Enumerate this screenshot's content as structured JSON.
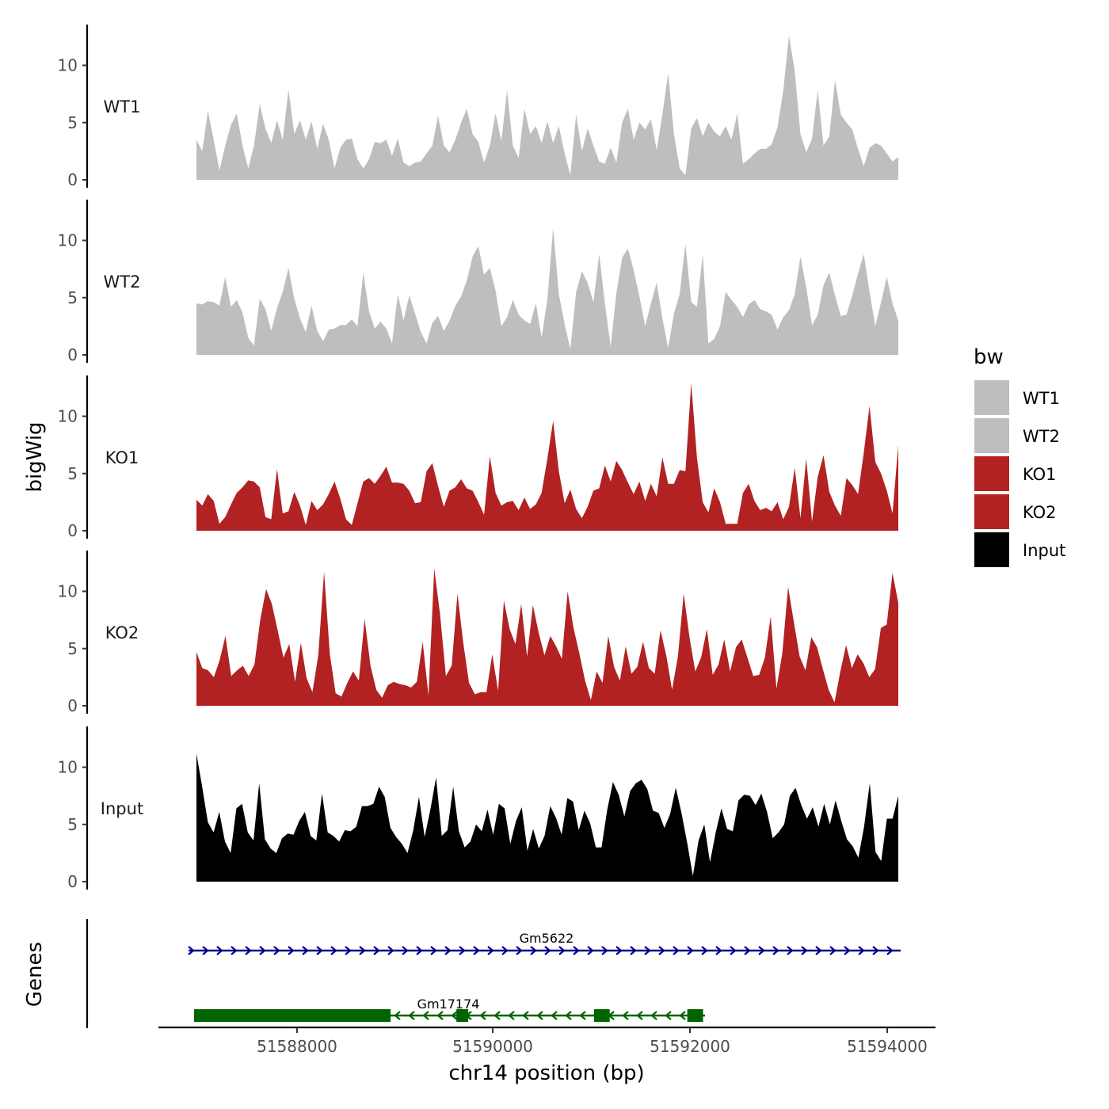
{
  "chart_data": {
    "type": "area",
    "ylabel": "bigWig",
    "xlabel": "chr14 position (bp)",
    "x_range": [
      51586950,
      51594100
    ],
    "x_ticks": [
      51588000,
      51590000,
      51592000,
      51594000
    ],
    "x_tick_labels": [
      "51588000",
      "51590000",
      "51592000",
      "51594000"
    ],
    "y_range": [
      0,
      13.5
    ],
    "y_ticks": [
      0,
      5,
      10
    ],
    "y_tick_labels": [
      "0",
      "5",
      "10"
    ],
    "legend": {
      "title": "bw",
      "position": "right",
      "entries": [
        {
          "label": "WT1",
          "color": "#bebebe"
        },
        {
          "label": "WT2",
          "color": "#bebebe"
        },
        {
          "label": "KO1",
          "color": "#b22222"
        },
        {
          "label": "KO2",
          "color": "#b22222"
        },
        {
          "label": "Input",
          "color": "#000000"
        }
      ]
    },
    "series": [
      {
        "name": "WT1",
        "color": "#bebebe",
        "values": [
          3.5,
          2.5,
          6,
          3.5,
          0.8,
          3,
          4.8,
          5.8,
          3,
          1,
          3,
          6.6,
          4.5,
          3.2,
          5.2,
          3.5,
          7.9,
          4,
          5.2,
          3.5,
          5.1,
          2.7,
          4.9,
          3.5,
          1,
          2.8,
          3.5,
          3.6,
          1.8,
          1,
          1.8,
          3.3,
          3.2,
          3.5,
          2.1,
          3.6,
          1.5,
          1.2,
          1.5,
          1.6,
          2.3,
          3,
          5.6,
          3,
          2.4,
          3.5,
          5,
          6.2,
          4,
          3.3,
          1.5,
          3,
          5.8,
          3.4,
          7.8,
          3,
          1.9,
          6.2,
          4,
          4.7,
          3.2,
          5.1,
          3.2,
          4.7,
          2.3,
          0.4,
          5.7,
          2.5,
          4.5,
          3,
          1.6,
          1.4,
          2.8,
          1.5,
          5,
          6.2,
          3.5,
          5,
          4.4,
          5.3,
          2.6,
          5.7,
          9.3,
          4,
          1,
          0.4,
          4.5,
          5.4,
          3.8,
          5,
          4.2,
          3.8,
          4.7,
          3.5,
          5.8,
          1.4,
          1.8,
          2.3,
          2.7,
          2.7,
          3.1,
          4.6,
          7.8,
          12.6,
          9.5,
          4,
          2.4,
          3.6,
          7.8,
          3,
          3.8,
          8.7,
          5.7,
          5,
          4.4,
          2.7,
          1.2,
          2.8,
          3.2,
          3,
          2.3,
          1.6,
          2
        ]
      },
      {
        "name": "WT2",
        "color": "#bebebe",
        "values": [
          4.5,
          4.4,
          4.7,
          4.6,
          4.3,
          6.8,
          4.2,
          4.8,
          3.7,
          1.5,
          0.8,
          4.9,
          4,
          2.1,
          4.1,
          5.5,
          7.6,
          4.9,
          3.2,
          2,
          4.3,
          2.1,
          1.2,
          2.2,
          2.3,
          2.6,
          2.6,
          3.1,
          2.5,
          7.2,
          3.8,
          2.3,
          2.9,
          2.3,
          1,
          5.3,
          3,
          5.2,
          3.6,
          2,
          1,
          2.8,
          3.4,
          2.1,
          3,
          4.3,
          5.1,
          6.5,
          8.6,
          9.5,
          7,
          7.6,
          5.6,
          2.5,
          3.3,
          4.8,
          3.5,
          3,
          2.7,
          4.5,
          1.5,
          4.8,
          11.1,
          5.3,
          2.7,
          0.5,
          5.5,
          7.3,
          6.3,
          4.6,
          8.8,
          4.5,
          0.7,
          5.4,
          8.5,
          9.3,
          7.4,
          5.1,
          2.5,
          4.5,
          6.3,
          3.2,
          0.6,
          3.6,
          5.3,
          9.7,
          4.6,
          4.2,
          8.8,
          1,
          1.4,
          2.5,
          5.5,
          4.8,
          4.2,
          3.3,
          4.4,
          4.8,
          4,
          3.8,
          3.5,
          2.2,
          3.3,
          3.9,
          5.3,
          8.6,
          5.9,
          2.6,
          3.5,
          6.1,
          7.2,
          5.2,
          3.4,
          3.5,
          5.2,
          7.1,
          8.8,
          5.5,
          2.5,
          4.6,
          6.8,
          4.5,
          3
        ]
      },
      {
        "name": "KO1",
        "color": "#b22222",
        "values": [
          2.7,
          2.2,
          3.2,
          2.6,
          0.6,
          1.2,
          2.3,
          3.3,
          3.8,
          4.4,
          4.3,
          3.8,
          1.2,
          1,
          5.4,
          1.5,
          1.7,
          3.4,
          2.2,
          0.5,
          2.6,
          1.8,
          2.3,
          3.2,
          4.3,
          2.8,
          1,
          0.5,
          2.4,
          4.3,
          4.6,
          4.1,
          4.8,
          5.6,
          4.2,
          4.2,
          4.1,
          3.5,
          2.4,
          2.5,
          5.2,
          5.9,
          3.9,
          2.1,
          3.5,
          3.8,
          4.5,
          3.7,
          3.5,
          2.5,
          1.4,
          6.5,
          3.3,
          2.2,
          2.5,
          2.6,
          1.8,
          2.9,
          1.9,
          2.3,
          3.3,
          6.3,
          9.6,
          5.2,
          2.4,
          3.6,
          1.9,
          1.1,
          2.1,
          3.5,
          3.7,
          5.7,
          4.3,
          6.1,
          5.3,
          4.2,
          3.2,
          4.3,
          2.6,
          4.1,
          3,
          6.4,
          4.1,
          4.1,
          5.3,
          5.2,
          12.9,
          6.4,
          2.5,
          1.6,
          3.7,
          2.5,
          0.6,
          0.6,
          0.6,
          3.3,
          4.1,
          2.6,
          1.8,
          2,
          1.7,
          2.5,
          1,
          2.1,
          5.5,
          1.1,
          6.3,
          0.8,
          4.7,
          6.6,
          3.4,
          2.2,
          1.3,
          4.6,
          4,
          3.2,
          6.8,
          10.9,
          6,
          5,
          3.5,
          1.5,
          7.5
        ]
      },
      {
        "name": "KO2",
        "color": "#b22222",
        "values": [
          4.7,
          3.3,
          3.1,
          2.5,
          4,
          6.1,
          2.6,
          3.1,
          3.5,
          2.6,
          3.6,
          7.5,
          10.2,
          8.9,
          6.6,
          4.2,
          5.4,
          2.1,
          5.5,
          2.4,
          1.2,
          4.4,
          11.7,
          4.5,
          1.1,
          0.8,
          2,
          3,
          2.2,
          7.6,
          3.5,
          1.4,
          0.7,
          1.8,
          2.1,
          1.9,
          1.8,
          1.6,
          2.1,
          5.6,
          0.9,
          12,
          8,
          2.6,
          3.5,
          9.8,
          5.5,
          2,
          1,
          1.2,
          1.2,
          4.5,
          1.3,
          9.2,
          6.7,
          5.4,
          8.9,
          4.3,
          8.8,
          6.4,
          4.4,
          6.1,
          5.2,
          4.1,
          10,
          6.8,
          4.6,
          2.2,
          0.5,
          3,
          2,
          6.1,
          3.4,
          2.2,
          5.2,
          2.8,
          3.4,
          5.6,
          3.3,
          2.8,
          6.6,
          4.4,
          1.4,
          4.3,
          9.8,
          6,
          3,
          4.2,
          6.7,
          2.7,
          3.6,
          5.8,
          3,
          5.1,
          5.8,
          4.2,
          2.6,
          2.7,
          4.2,
          7.8,
          1.5,
          4.6,
          10.4,
          7.3,
          4.3,
          3.1,
          6,
          5.1,
          3.2,
          1.4,
          0.3,
          3,
          5.3,
          3.3,
          4.5,
          3.7,
          2.5,
          3.2,
          6.8,
          7.1,
          11.6,
          9
        ]
      },
      {
        "name": "Input",
        "color": "#000000",
        "values": [
          11.2,
          8.3,
          5.2,
          4.3,
          6.1,
          3.5,
          2.5,
          6.4,
          6.8,
          4.3,
          3.6,
          8.6,
          3.7,
          2.9,
          2.5,
          3.8,
          4.2,
          4.1,
          5.3,
          6.1,
          4,
          3.6,
          7.7,
          4.3,
          4,
          3.5,
          4.5,
          4.4,
          4.8,
          6.6,
          6.6,
          6.8,
          8.3,
          7.4,
          4.7,
          3.9,
          3.3,
          2.5,
          4.5,
          7.4,
          3.9,
          6.3,
          9.1,
          4,
          4.5,
          8.3,
          4.4,
          3,
          3.5,
          5,
          4.4,
          6.3,
          4.1,
          6.8,
          6.4,
          3.3,
          5.3,
          6.5,
          2.7,
          4.6,
          2.9,
          4,
          6.6,
          5.6,
          4.1,
          7.3,
          7,
          4.5,
          6.2,
          5.1,
          3,
          3,
          6.3,
          8.7,
          7.6,
          5.7,
          7.9,
          8.6,
          8.9,
          8.1,
          6.2,
          6,
          4.7,
          5.9,
          8.2,
          6,
          3.4,
          0.5,
          3.6,
          5,
          1.7,
          4.3,
          6.4,
          4.6,
          4.4,
          7.1,
          7.6,
          7.5,
          6.7,
          7.7,
          6.1,
          3.8,
          4.3,
          5,
          7.5,
          8.2,
          6.7,
          5.5,
          6.5,
          4.8,
          6.8,
          5,
          7.1,
          5.3,
          3.7,
          3.1,
          2.1,
          4.8,
          8.6,
          2.6,
          1.8,
          5.5,
          5.5,
          7.5
        ]
      }
    ],
    "gene_track": {
      "label": "Genes",
      "genes": [
        {
          "name": "Gm5622",
          "strand": "+",
          "start": 51586950,
          "end": 51594100,
          "color": "#00008b",
          "exons": []
        },
        {
          "name": "Gm17174",
          "strand": "-",
          "start": 51586950,
          "end": 51592150,
          "color": "#006400",
          "exons": [
            [
              51586950,
              51588950
            ],
            [
              51589620,
              51589740
            ],
            [
              51591020,
              51591180
            ],
            [
              51591970,
              51592130
            ]
          ]
        }
      ]
    }
  }
}
